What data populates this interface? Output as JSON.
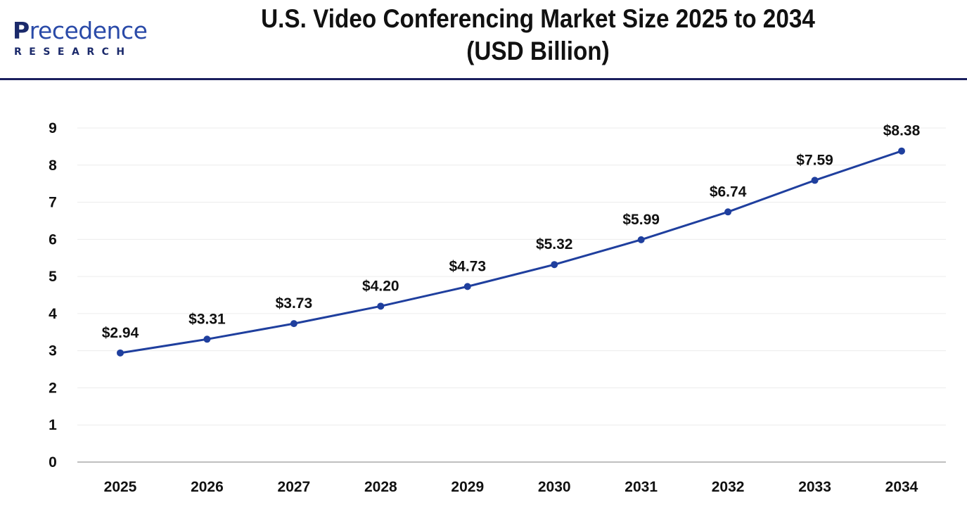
{
  "header": {
    "logo": {
      "main_first": "P",
      "main_rest": "recedence",
      "sub": "RESEARCH"
    },
    "title_line1": "U.S. Video Conferencing Market Size 2025 to 2034",
    "title_line2": "(USD Billion)"
  },
  "colors": {
    "line": "#1f3f9e",
    "marker": "#1f3f9e",
    "divider": "#1b1f5e",
    "gridline": "#ececec",
    "axis": "#bfbfbf",
    "brand_dark": "#1b2a6b",
    "brand_light": "#2a4aa8"
  },
  "chart_data": {
    "type": "line",
    "title": "U.S. Video Conferencing Market Size 2025 to 2034 (USD Billion)",
    "xlabel": "",
    "ylabel": "",
    "categories": [
      "2025",
      "2026",
      "2027",
      "2028",
      "2029",
      "2030",
      "2031",
      "2032",
      "2033",
      "2034"
    ],
    "series": [
      {
        "name": "U.S. Video Conferencing Market Size (USD Billion)",
        "values": [
          2.94,
          3.31,
          3.73,
          4.2,
          4.73,
          5.32,
          5.99,
          6.74,
          7.59,
          8.38
        ],
        "labels": [
          "$2.94",
          "$3.31",
          "$3.73",
          "$4.20",
          "$4.73",
          "$5.32",
          "$5.99",
          "$6.74",
          "$7.59",
          "$8.38"
        ]
      }
    ],
    "ylim": [
      0,
      9
    ],
    "yticks": [
      "0",
      "1",
      "2",
      "3",
      "4",
      "5",
      "6",
      "7",
      "8",
      "9"
    ],
    "grid": true,
    "legend": "none",
    "markers": true
  }
}
